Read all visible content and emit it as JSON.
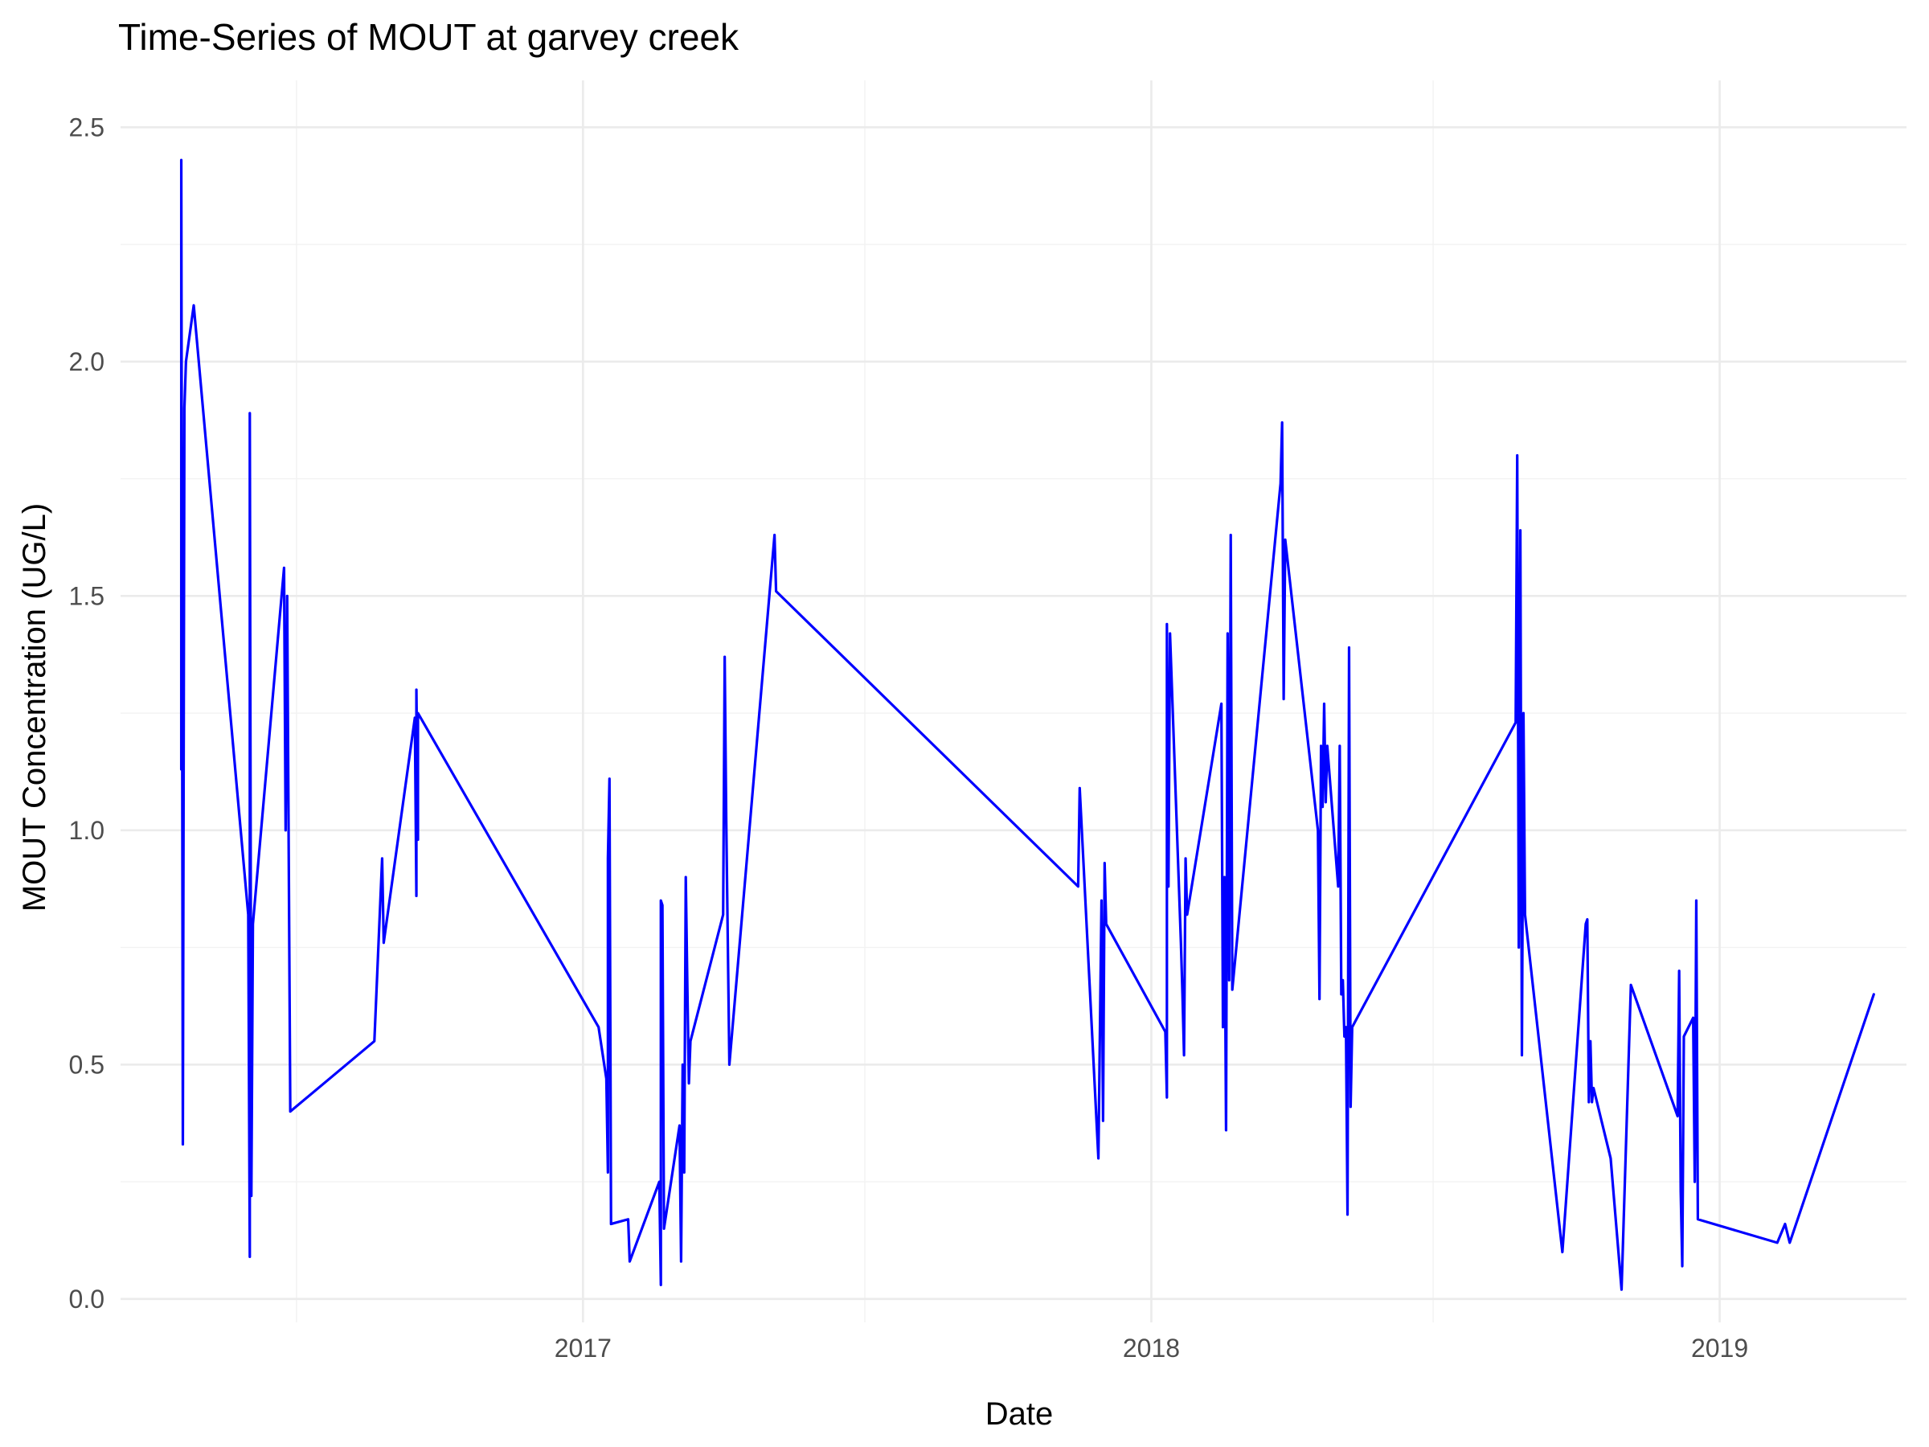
{
  "chart_data": {
    "type": "line",
    "title": "Time-Series of MOUT at garvey creek",
    "xlabel": "Date",
    "ylabel": "MOUT Concentration (UG/L)",
    "x_axis_type": "date",
    "xlim": [
      "2016-03-10",
      "2019-05-01"
    ],
    "ylim": [
      -0.05,
      2.6
    ],
    "x_ticks": [
      {
        "date": "2017-01-01",
        "label": "2017"
      },
      {
        "date": "2018-01-01",
        "label": "2018"
      },
      {
        "date": "2019-01-01",
        "label": "2019"
      }
    ],
    "x_minor_ticks": [
      "2016-07-01",
      "2017-07-01",
      "2018-07-01"
    ],
    "y_ticks": [
      {
        "value": 0.0,
        "label": "0.0"
      },
      {
        "value": 0.5,
        "label": "0.5"
      },
      {
        "value": 1.0,
        "label": "1.0"
      },
      {
        "value": 1.5,
        "label": "1.5"
      },
      {
        "value": 2.0,
        "label": "2.0"
      },
      {
        "value": 2.5,
        "label": "2.5"
      }
    ],
    "y_minor_ticks": [
      0.25,
      0.75,
      1.25,
      1.75,
      2.25
    ],
    "grid": true,
    "legend": "none",
    "series_color": "#0000ff",
    "series": [
      {
        "points": [
          [
            "2016-04-18",
            1.13
          ],
          [
            "2016-04-18",
            2.43
          ],
          [
            "2016-04-19",
            0.33
          ],
          [
            "2016-04-20",
            1.9
          ],
          [
            "2016-04-21",
            2.0
          ],
          [
            "2016-04-26",
            2.12
          ],
          [
            "2016-05-31",
            0.82
          ],
          [
            "2016-06-01",
            0.09
          ],
          [
            "2016-06-01",
            1.89
          ],
          [
            "2016-06-02",
            0.22
          ],
          [
            "2016-06-03",
            0.8
          ],
          [
            "2016-06-23",
            1.56
          ],
          [
            "2016-06-24",
            1.0
          ],
          [
            "2016-06-25",
            1.5
          ],
          [
            "2016-06-27",
            0.4
          ],
          [
            "2016-08-20",
            0.55
          ],
          [
            "2016-08-25",
            0.94
          ],
          [
            "2016-08-26",
            0.76
          ],
          [
            "2016-09-15",
            1.24
          ],
          [
            "2016-09-16",
            0.86
          ],
          [
            "2016-09-16",
            1.3
          ],
          [
            "2016-09-17",
            0.98
          ],
          [
            "2016-09-17",
            1.25
          ],
          [
            "2017-01-11",
            0.58
          ],
          [
            "2017-01-16",
            0.47
          ],
          [
            "2017-01-17",
            0.27
          ],
          [
            "2017-01-17",
            0.94
          ],
          [
            "2017-01-18",
            1.11
          ],
          [
            "2017-01-19",
            0.16
          ],
          [
            "2017-01-30",
            0.17
          ],
          [
            "2017-01-31",
            0.08
          ],
          [
            "2017-02-19",
            0.25
          ],
          [
            "2017-02-20",
            0.03
          ],
          [
            "2017-02-20",
            0.85
          ],
          [
            "2017-02-21",
            0.84
          ],
          [
            "2017-02-22",
            0.15
          ],
          [
            "2017-03-04",
            0.37
          ],
          [
            "2017-03-05",
            0.08
          ],
          [
            "2017-03-06",
            0.5
          ],
          [
            "2017-03-07",
            0.27
          ],
          [
            "2017-03-08",
            0.9
          ],
          [
            "2017-03-09",
            0.67
          ],
          [
            "2017-03-10",
            0.46
          ],
          [
            "2017-03-11",
            0.55
          ],
          [
            "2017-04-01",
            0.82
          ],
          [
            "2017-04-02",
            1.37
          ],
          [
            "2017-04-03",
            1.02
          ],
          [
            "2017-04-05",
            0.5
          ],
          [
            "2017-05-04",
            1.63
          ],
          [
            "2017-05-05",
            1.51
          ],
          [
            "2017-11-15",
            0.88
          ],
          [
            "2017-11-16",
            1.09
          ],
          [
            "2017-11-28",
            0.3
          ],
          [
            "2017-11-30",
            0.85
          ],
          [
            "2017-12-01",
            0.38
          ],
          [
            "2017-12-02",
            0.93
          ],
          [
            "2017-12-03",
            0.8
          ],
          [
            "2018-01-10",
            0.57
          ],
          [
            "2018-01-11",
            0.43
          ],
          [
            "2018-01-11",
            1.44
          ],
          [
            "2018-01-12",
            0.88
          ],
          [
            "2018-01-13",
            1.42
          ],
          [
            "2018-01-20",
            0.76
          ],
          [
            "2018-01-21",
            0.65
          ],
          [
            "2018-01-22",
            0.52
          ],
          [
            "2018-01-23",
            0.94
          ],
          [
            "2018-01-24",
            0.82
          ],
          [
            "2018-02-15",
            1.27
          ],
          [
            "2018-02-16",
            0.58
          ],
          [
            "2018-02-17",
            0.9
          ],
          [
            "2018-02-18",
            0.36
          ],
          [
            "2018-02-19",
            1.42
          ],
          [
            "2018-02-20",
            0.68
          ],
          [
            "2018-02-21",
            1.63
          ],
          [
            "2018-02-22",
            0.66
          ],
          [
            "2018-03-25",
            1.74
          ],
          [
            "2018-03-26",
            1.87
          ],
          [
            "2018-03-27",
            1.28
          ],
          [
            "2018-03-28",
            1.62
          ],
          [
            "2018-04-18",
            1.0
          ],
          [
            "2018-04-19",
            0.64
          ],
          [
            "2018-04-20",
            1.18
          ],
          [
            "2018-04-21",
            1.05
          ],
          [
            "2018-04-22",
            1.27
          ],
          [
            "2018-04-23",
            1.06
          ],
          [
            "2018-04-24",
            1.18
          ],
          [
            "2018-05-01",
            0.88
          ],
          [
            "2018-05-02",
            1.18
          ],
          [
            "2018-05-03",
            0.65
          ],
          [
            "2018-05-04",
            0.68
          ],
          [
            "2018-05-05",
            0.56
          ],
          [
            "2018-05-06",
            0.58
          ],
          [
            "2018-05-07",
            0.18
          ],
          [
            "2018-05-08",
            1.39
          ],
          [
            "2018-05-09",
            0.41
          ],
          [
            "2018-05-10",
            0.58
          ],
          [
            "2018-08-23",
            1.23
          ],
          [
            "2018-08-24",
            1.8
          ],
          [
            "2018-08-25",
            0.75
          ],
          [
            "2018-08-26",
            1.64
          ],
          [
            "2018-08-27",
            0.52
          ],
          [
            "2018-08-28",
            1.25
          ],
          [
            "2018-08-29",
            0.82
          ],
          [
            "2018-09-22",
            0.1
          ],
          [
            "2018-10-07",
            0.8
          ],
          [
            "2018-10-08",
            0.81
          ],
          [
            "2018-10-09",
            0.42
          ],
          [
            "2018-10-10",
            0.55
          ],
          [
            "2018-10-11",
            0.42
          ],
          [
            "2018-10-12",
            0.45
          ],
          [
            "2018-10-23",
            0.3
          ],
          [
            "2018-10-30",
            0.02
          ],
          [
            "2018-11-05",
            0.67
          ],
          [
            "2018-12-05",
            0.39
          ],
          [
            "2018-12-06",
            0.7
          ],
          [
            "2018-12-07",
            0.23
          ],
          [
            "2018-12-08",
            0.07
          ],
          [
            "2018-12-09",
            0.56
          ],
          [
            "2018-12-12",
            0.58
          ],
          [
            "2018-12-15",
            0.6
          ],
          [
            "2018-12-16",
            0.25
          ],
          [
            "2018-12-17",
            0.85
          ],
          [
            "2018-12-18",
            0.17
          ],
          [
            "2019-02-07",
            0.12
          ],
          [
            "2019-02-12",
            0.16
          ],
          [
            "2019-02-15",
            0.12
          ],
          [
            "2019-04-10",
            0.65
          ]
        ]
      }
    ]
  }
}
